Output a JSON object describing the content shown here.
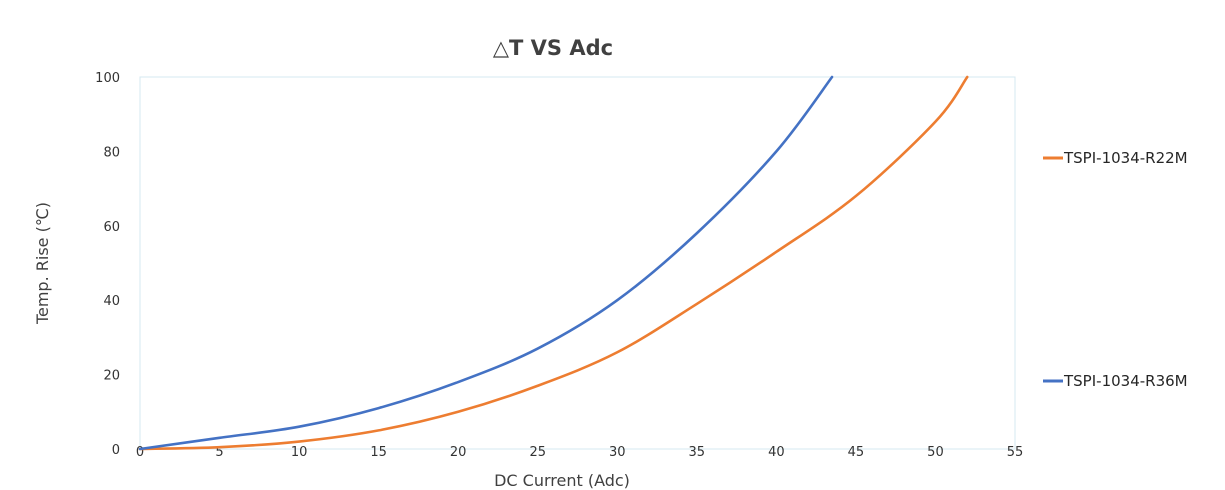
{
  "chart_data": {
    "type": "line",
    "title": "△T VS Adc",
    "xlabel": "DC Current (Adc)",
    "ylabel": "Temp. Rise (℃)",
    "xlim": [
      0,
      55
    ],
    "ylim": [
      0,
      100
    ],
    "x_ticks": [
      "0",
      "5",
      "10",
      "15",
      "20",
      "25",
      "30",
      "35",
      "40",
      "45",
      "50",
      "55"
    ],
    "y_ticks": [
      "0",
      "20",
      "40",
      "60",
      "80",
      "100"
    ],
    "grid": false,
    "legend_position": "right",
    "series": [
      {
        "name": "TSPI-1034-R22M",
        "color": "#ED7D31",
        "x": [
          0,
          5,
          10,
          15,
          20,
          25,
          30,
          35,
          40,
          45,
          50,
          52
        ],
        "y": [
          0,
          0.5,
          2,
          5,
          10,
          17,
          26,
          39,
          53,
          68,
          88,
          100
        ]
      },
      {
        "name": "TSPI-1034-R36M",
        "color": "#4472C4",
        "x": [
          0,
          5,
          10,
          15,
          20,
          25,
          30,
          35,
          40,
          43.5
        ],
        "y": [
          0,
          3,
          6,
          11,
          18,
          27,
          40,
          58,
          80,
          100
        ]
      }
    ]
  }
}
